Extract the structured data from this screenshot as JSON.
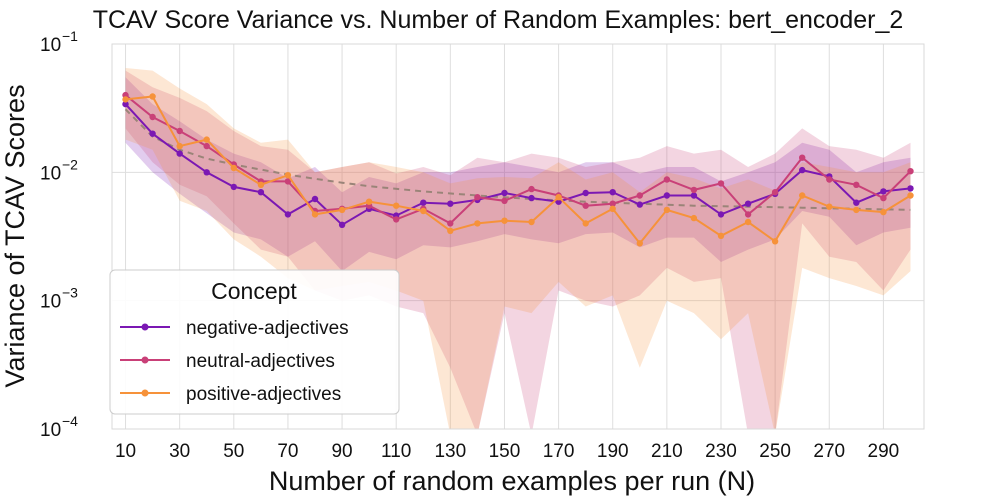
{
  "chart_data": {
    "type": "line",
    "title": "TCAV Score Variance vs. Number of Random Examples: bert_encoder_2",
    "xlabel": "Number of random examples per run (N)",
    "ylabel": "Variance of TCAV Scores",
    "yscale": "log",
    "ylim": [
      0.0001,
      0.1
    ],
    "xlim": [
      5,
      305
    ],
    "grid": true,
    "x_ticks": [
      10,
      30,
      50,
      70,
      90,
      110,
      130,
      150,
      170,
      190,
      210,
      230,
      250,
      270,
      290
    ],
    "x_tick_labels": [
      "10",
      "30",
      "50",
      "70",
      "90",
      "110",
      "130",
      "150",
      "170",
      "190",
      "210",
      "230",
      "250",
      "270",
      "290"
    ],
    "y_ticks": [
      0.0001,
      0.001,
      0.01,
      0.1
    ],
    "y_tick_labels": [
      {
        "base": "10",
        "exp": "−4"
      },
      {
        "base": "10",
        "exp": "−3"
      },
      {
        "base": "10",
        "exp": "−2"
      },
      {
        "base": "10",
        "exp": "−1"
      }
    ],
    "x": [
      10,
      20,
      30,
      40,
      50,
      60,
      70,
      80,
      90,
      100,
      110,
      120,
      130,
      140,
      150,
      160,
      170,
      180,
      190,
      200,
      210,
      220,
      230,
      240,
      250,
      260,
      270,
      280,
      290,
      300
    ],
    "series": [
      {
        "name": "negative-adjectives",
        "color": "#7b18b3",
        "values": [
          0.034,
          0.02,
          0.014,
          0.01,
          0.0077,
          0.007,
          0.0047,
          0.0062,
          0.0039,
          0.0052,
          0.0046,
          0.0058,
          0.0057,
          0.0061,
          0.0069,
          0.0063,
          0.0059,
          0.0069,
          0.007,
          0.0056,
          0.0066,
          0.0066,
          0.0047,
          0.0057,
          0.0068,
          0.0104,
          0.0093,
          0.0058,
          0.0071,
          0.0075
        ],
        "band_low": [
          0.017,
          0.01,
          0.0068,
          0.0048,
          0.0034,
          0.003,
          0.0022,
          0.0029,
          0.0017,
          0.0024,
          0.0021,
          0.0027,
          0.0026,
          0.0029,
          0.0033,
          0.003,
          0.0028,
          0.0033,
          0.0034,
          0.0026,
          0.0031,
          0.0031,
          0.002,
          0.0025,
          0.003,
          0.005,
          0.0045,
          0.0027,
          0.0034,
          0.0037
        ],
        "band_high": [
          0.055,
          0.034,
          0.025,
          0.018,
          0.014,
          0.012,
          0.009,
          0.011,
          0.007,
          0.0092,
          0.0082,
          0.01,
          0.01,
          0.011,
          0.012,
          0.011,
          0.01,
          0.012,
          0.012,
          0.0098,
          0.011,
          0.011,
          0.0085,
          0.01,
          0.012,
          0.017,
          0.015,
          0.01,
          0.012,
          0.013
        ]
      },
      {
        "name": "neutral-adjectives",
        "color": "#c94078",
        "values": [
          0.04,
          0.027,
          0.021,
          0.016,
          0.0115,
          0.0085,
          0.0085,
          0.005,
          0.0052,
          0.0055,
          0.0043,
          0.0052,
          0.004,
          0.0064,
          0.006,
          0.0074,
          0.0066,
          0.0055,
          0.0057,
          0.0066,
          0.0088,
          0.0073,
          0.0082,
          0.0047,
          0.007,
          0.013,
          0.0088,
          0.008,
          0.0063,
          0.0102
        ],
        "band_low": [
          0.022,
          0.012,
          0.008,
          0.0065,
          0.004,
          0.0025,
          0.0022,
          0.0012,
          0.001,
          0.0011,
          0.0009,
          0.0008,
          0.0003,
          9e-05,
          0.0008,
          9e-05,
          0.0012,
          0.001,
          0.0009,
          0.0011,
          0.0018,
          0.0014,
          0.0015,
          9e-05,
          9e-05,
          0.004,
          0.0022,
          0.002,
          0.0012,
          0.0025
        ],
        "band_high": [
          0.062,
          0.046,
          0.038,
          0.03,
          0.021,
          0.016,
          0.015,
          0.01,
          0.011,
          0.012,
          0.0098,
          0.011,
          0.0095,
          0.013,
          0.012,
          0.014,
          0.013,
          0.011,
          0.012,
          0.013,
          0.016,
          0.014,
          0.015,
          0.011,
          0.014,
          0.022,
          0.016,
          0.015,
          0.013,
          0.017
        ]
      },
      {
        "name": "positive-adjectives",
        "color": "#f6923a",
        "values": [
          0.037,
          0.039,
          0.016,
          0.018,
          0.0108,
          0.008,
          0.0095,
          0.0047,
          0.0051,
          0.0059,
          0.0055,
          0.005,
          0.0035,
          0.004,
          0.0042,
          0.0041,
          0.0064,
          0.004,
          0.0052,
          0.0028,
          0.0051,
          0.0044,
          0.0032,
          0.0041,
          0.0029,
          0.0066,
          0.0054,
          0.0051,
          0.0049,
          0.0066
        ],
        "band_low": [
          0.018,
          0.015,
          0.006,
          0.005,
          0.003,
          0.0022,
          0.0015,
          0.0012,
          0.0013,
          0.0014,
          0.0012,
          0.001,
          9e-05,
          9e-05,
          0.0009,
          0.0008,
          0.0014,
          0.0009,
          0.0011,
          0.0003,
          0.001,
          0.0008,
          0.0005,
          0.0008,
          9e-05,
          0.0018,
          0.0015,
          0.0013,
          0.0011,
          0.0017
        ],
        "band_high": [
          0.065,
          0.062,
          0.045,
          0.034,
          0.022,
          0.017,
          0.018,
          0.01,
          0.011,
          0.012,
          0.011,
          0.01,
          0.0082,
          0.009,
          0.0092,
          0.009,
          0.012,
          0.0088,
          0.01,
          0.007,
          0.01,
          0.009,
          0.0075,
          0.0088,
          0.0072,
          0.012,
          0.011,
          0.01,
          0.01,
          0.012
        ]
      }
    ],
    "trend": {
      "style": "dashed",
      "color": "#9a8478",
      "x": [
        10,
        20,
        30,
        40,
        50,
        60,
        70,
        80,
        90,
        100,
        120,
        140,
        160,
        180,
        200,
        220,
        240,
        260,
        280,
        300
      ],
      "values": [
        0.031,
        0.019,
        0.015,
        0.0128,
        0.0115,
        0.0105,
        0.0096,
        0.0089,
        0.0083,
        0.0078,
        0.0071,
        0.0066,
        0.0062,
        0.0059,
        0.0057,
        0.0055,
        0.0054,
        0.0053,
        0.0052,
        0.0051
      ]
    },
    "legend": {
      "title": "Concept",
      "position": "lower-left"
    }
  }
}
